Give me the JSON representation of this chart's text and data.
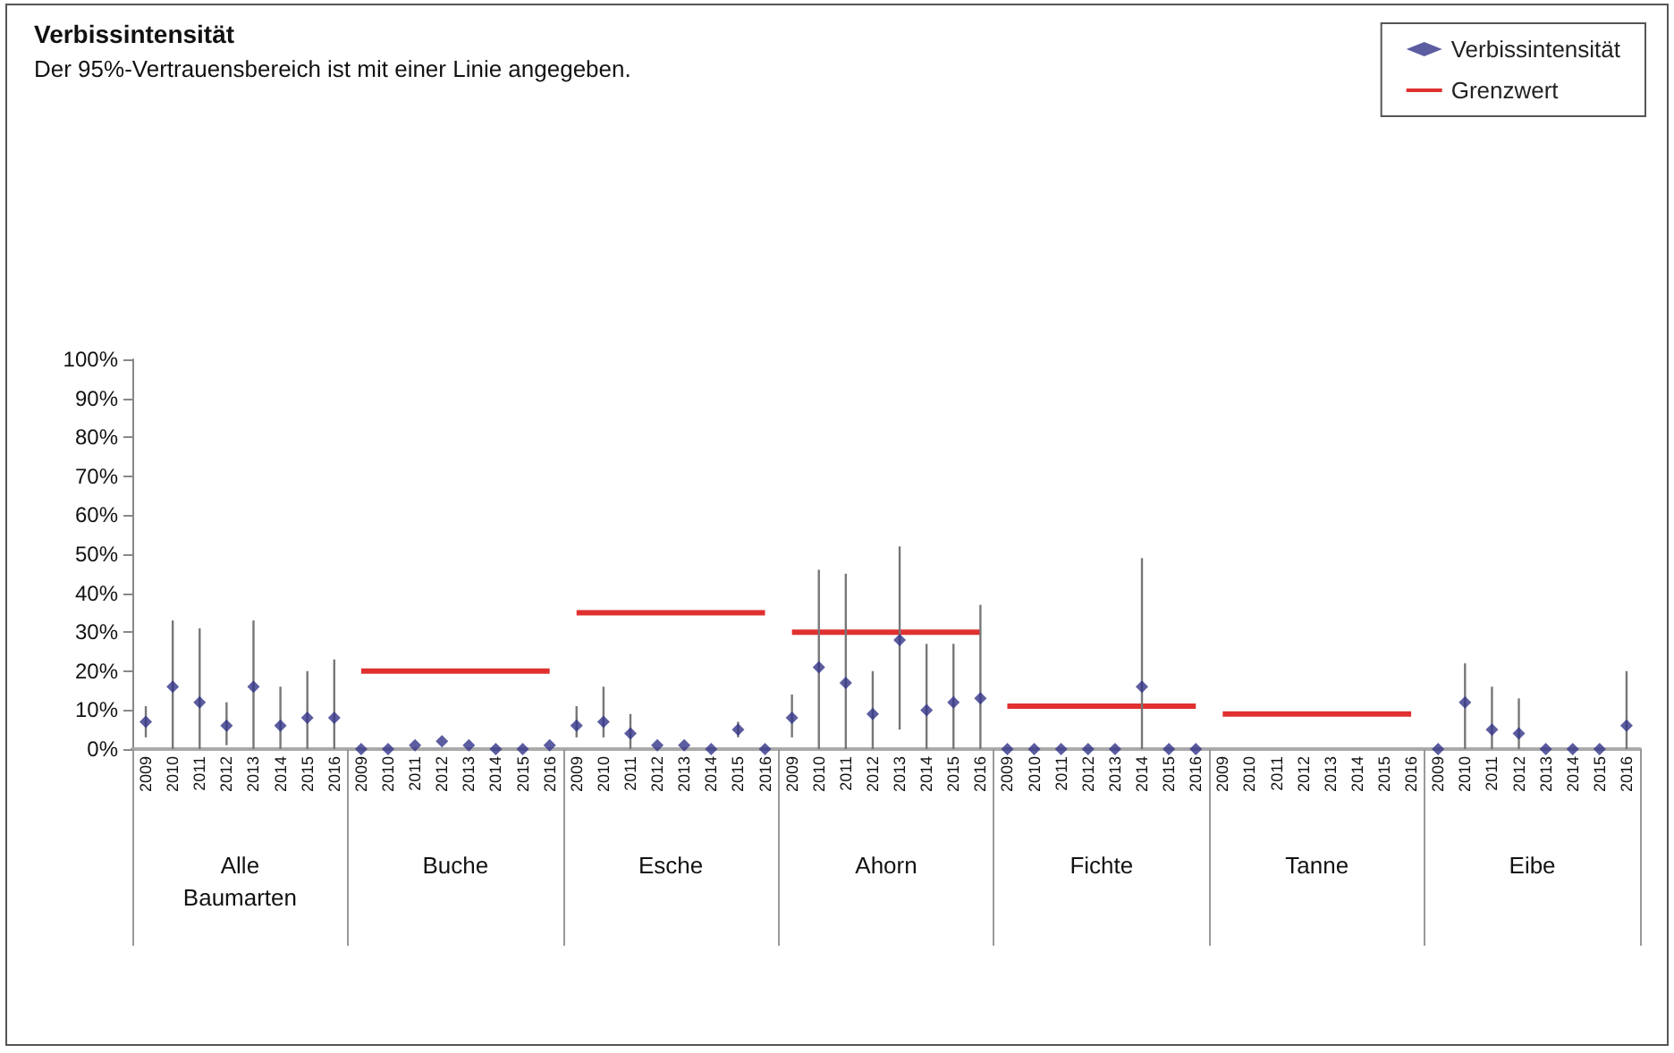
{
  "chart_data": {
    "type": "scatter",
    "title": "Verbissintensität",
    "subtitle": "Der 95%-Vertrauensbereich ist mit einer Linie angegeben.",
    "categories": [
      "2009",
      "2010",
      "2011",
      "2012",
      "2013",
      "2014",
      "2015",
      "2016",
      "2009",
      "2010",
      "2011",
      "2012",
      "2013",
      "2014",
      "2015",
      "2016",
      "2009",
      "2010",
      "2011",
      "2012",
      "2013",
      "2014",
      "2015",
      "2016",
      "2009",
      "2010",
      "2011",
      "2012",
      "2013",
      "2014",
      "2015",
      "2016",
      "2009",
      "2010",
      "2011",
      "2012",
      "2013",
      "2014",
      "2015",
      "2016",
      "2009",
      "2010",
      "2011",
      "2012",
      "2013",
      "2014",
      "2015",
      "2016",
      "2009",
      "2010",
      "2011",
      "2012",
      "2013",
      "2014",
      "2015",
      "2016"
    ],
    "annotations": [
      "Alle Baumarten",
      "Buche",
      "Esche",
      "Ahorn",
      "Fichte",
      "Tanne",
      "Eibe"
    ],
    "series": [
      {
        "name": "Verbissintensität",
        "color": "#33338a",
        "marker": "diamond",
        "values": [
          7,
          16,
          12,
          6,
          16,
          6,
          8,
          8,
          0,
          0,
          1,
          2,
          1,
          0,
          0,
          1,
          6,
          7,
          4,
          1,
          1,
          0,
          5,
          0,
          8,
          21,
          17,
          9,
          28,
          10,
          12,
          13,
          0,
          0,
          0,
          0,
          0,
          16,
          0,
          0,
          null,
          null,
          null,
          null,
          null,
          null,
          null,
          null,
          0,
          12,
          5,
          4,
          0,
          0,
          0,
          6
        ],
        "errors": [
          [
            3,
            11
          ],
          [
            0,
            33
          ],
          [
            0,
            31
          ],
          [
            1,
            12
          ],
          [
            0,
            33
          ],
          [
            0,
            16
          ],
          [
            0,
            20
          ],
          [
            0,
            23
          ],
          null,
          null,
          null,
          null,
          null,
          null,
          null,
          null,
          [
            3,
            11
          ],
          [
            3,
            16
          ],
          [
            0,
            9
          ],
          null,
          null,
          null,
          [
            3,
            7
          ],
          null,
          [
            3,
            14
          ],
          [
            0,
            46
          ],
          [
            0,
            45
          ],
          [
            0,
            20
          ],
          [
            5,
            52
          ],
          [
            0,
            27
          ],
          [
            0,
            27
          ],
          [
            0,
            37
          ],
          null,
          null,
          null,
          null,
          null,
          [
            0,
            49
          ],
          null,
          null,
          null,
          null,
          null,
          null,
          null,
          null,
          null,
          null,
          null,
          [
            0,
            22
          ],
          [
            0,
            16
          ],
          [
            0,
            13
          ],
          null,
          null,
          null,
          [
            0,
            20
          ]
        ]
      },
      {
        "name": "Grenzwert",
        "type": "line",
        "color": "#e03030",
        "marker": "none",
        "values": [
          null,
          null,
          null,
          null,
          null,
          null,
          null,
          null,
          20,
          20,
          20,
          20,
          20,
          20,
          20,
          20,
          35,
          35,
          35,
          35,
          35,
          35,
          35,
          35,
          30,
          30,
          30,
          30,
          30,
          30,
          30,
          30,
          11,
          11,
          11,
          11,
          11,
          11,
          11,
          11,
          9,
          9,
          9,
          9,
          9,
          9,
          9,
          9,
          null,
          null,
          null,
          null,
          null,
          null,
          null,
          null
        ]
      }
    ],
    "ylim": [
      0,
      100
    ],
    "yticks": [
      {
        "value": 0,
        "label": "0%"
      },
      {
        "value": 10,
        "label": "10%"
      },
      {
        "value": 20,
        "label": "20%"
      },
      {
        "value": 30,
        "label": "30%"
      },
      {
        "value": 40,
        "label": "40%"
      },
      {
        "value": 50,
        "label": "50%"
      },
      {
        "value": 60,
        "label": "60%"
      },
      {
        "value": 70,
        "label": "70%"
      },
      {
        "value": 80,
        "label": "80%"
      },
      {
        "value": 90,
        "label": "90%"
      },
      {
        "value": 100,
        "label": "100%"
      }
    ],
    "grid": false,
    "legend": "top right"
  }
}
